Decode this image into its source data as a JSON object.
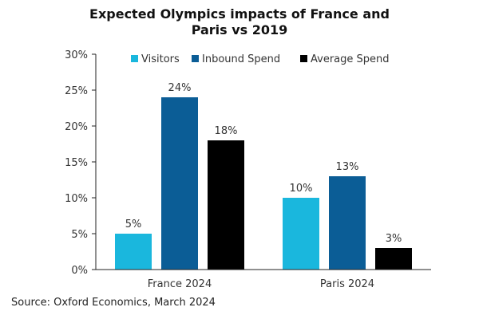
{
  "title_line1": "Expected Olympics impacts of France and",
  "title_line2": "Paris vs 2019",
  "source": "Source: Oxford Economics, March 2024",
  "chart_data": {
    "type": "bar",
    "title": "Expected Olympics impacts of France and Paris vs 2019",
    "categories": [
      "France 2024",
      "Paris 2024"
    ],
    "series": [
      {
        "name": "Visitors",
        "values": [
          5,
          10
        ],
        "labels": [
          "5%",
          "10%"
        ],
        "color": "#1ab7dd"
      },
      {
        "name": "Inbound Spend",
        "values": [
          24,
          13
        ],
        "labels": [
          "24%",
          "13%"
        ],
        "color": "#0b5d96"
      },
      {
        "name": "Average Spend",
        "values": [
          18,
          3
        ],
        "labels": [
          "18%",
          "3%"
        ],
        "color": "#000000"
      }
    ],
    "ylim": [
      0,
      30
    ],
    "yticks": [
      0,
      5,
      10,
      15,
      20,
      25,
      30
    ],
    "ytick_labels": [
      "0%",
      "5%",
      "10%",
      "15%",
      "20%",
      "25%",
      "30%"
    ],
    "xlabel": "",
    "ylabel": "",
    "grid": false,
    "legend_position": "top"
  }
}
